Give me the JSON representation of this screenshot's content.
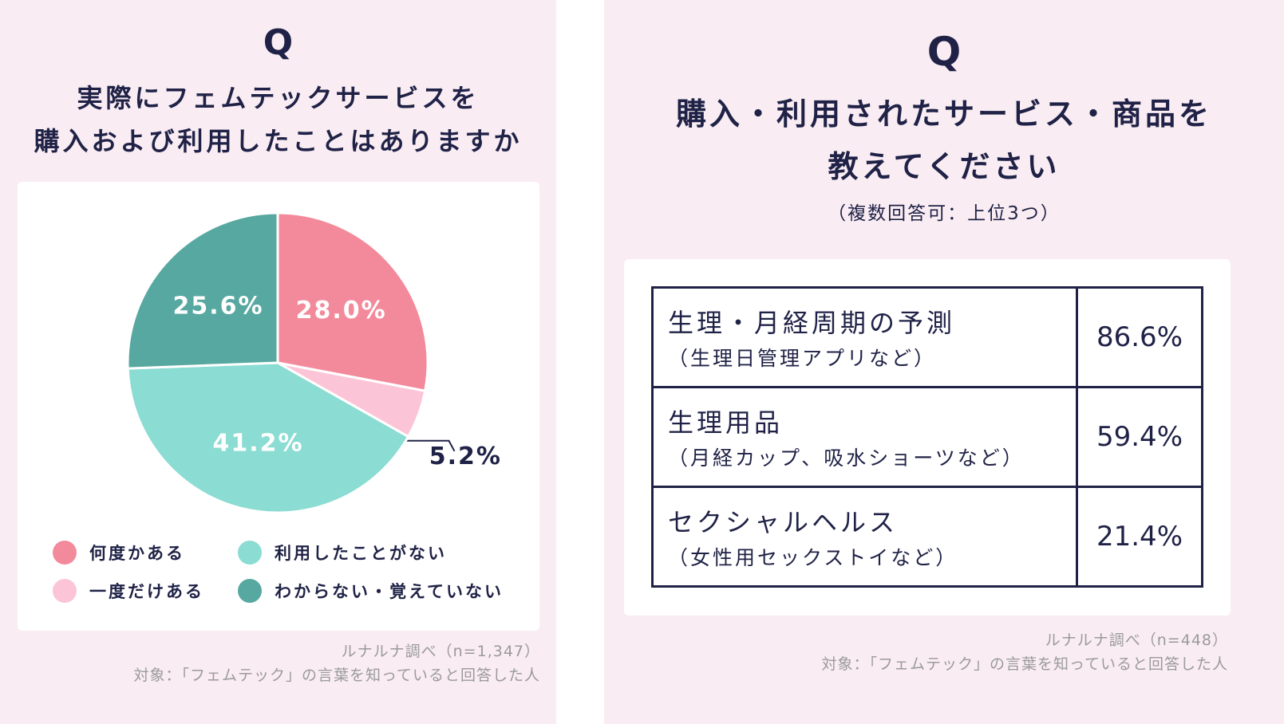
{
  "left": {
    "q": "Q",
    "title_line1": "実際にフェムテックサービスを",
    "title_line2": "購入および利用したことはありますか",
    "source": "ルナルナ調べ（n=1,347）",
    "target": "対象：「フェムテック」の言葉を知っていると回答した人"
  },
  "right": {
    "q": "Q",
    "title_line1": "購入・利用されたサービス・商品を",
    "title_line2": "教えてください",
    "subtitle": "（複数回答可：上位3つ）",
    "source": "ルナルナ調べ（n=448）",
    "target": "対象：「フェムテック」の言葉を知っていると回答した人"
  },
  "chart_data": [
    {
      "type": "pie",
      "slices": [
        {
          "name": "何度かある",
          "value": 28.0,
          "label": "28.0%",
          "color": "#f38a9c"
        },
        {
          "name": "一度だけある",
          "value": 5.2,
          "label": "5.2%",
          "color": "#fcc5d7"
        },
        {
          "name": "利用したことがない",
          "value": 41.2,
          "label": "41.2%",
          "color": "#8bdcd3"
        },
        {
          "name": "わからない・覚えていない",
          "value": 25.6,
          "label": "25.6%",
          "color": "#57a8a0"
        }
      ],
      "start": "top",
      "direction": "clockwise",
      "legend_placement": "bottom"
    },
    {
      "type": "table",
      "rows": [
        {
          "name": "生理・月経周期の予測",
          "detail": "（生理日管理アプリなど）",
          "value": "86.6%"
        },
        {
          "name": "生理用品",
          "detail": "（月経カップ、吸水ショーツなど）",
          "value": "59.4%"
        },
        {
          "name": "セクシャルヘルス",
          "detail": "（女性用セックストイなど）",
          "value": "21.4%"
        }
      ]
    }
  ]
}
